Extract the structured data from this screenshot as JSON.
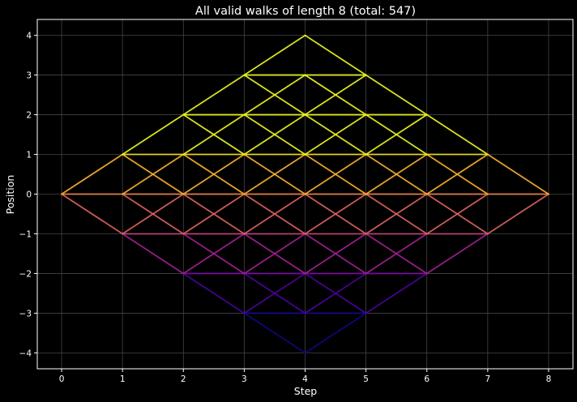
{
  "chart_data": {
    "type": "line",
    "title": "All valid walks of length 8 (total: 547)",
    "xlabel": "Step",
    "ylabel": "Position",
    "xlim": [
      -0.4,
      8.4
    ],
    "ylim": [
      -4.4,
      4.4
    ],
    "x_ticks": [
      "0",
      "1",
      "2",
      "3",
      "4",
      "5",
      "6",
      "7",
      "8"
    ],
    "y_ticks": [
      "4",
      "3",
      "2",
      "1",
      "0",
      "−1",
      "−2",
      "−3",
      "−4"
    ],
    "grid": true,
    "theme": {
      "background": "#000000",
      "frame": "#ffffff",
      "grid": "#444444",
      "colormap": "plasma"
    },
    "walk_rule": "each step moves -1, 0 or +1; walk ends at position 0",
    "total_walks": 547
  }
}
